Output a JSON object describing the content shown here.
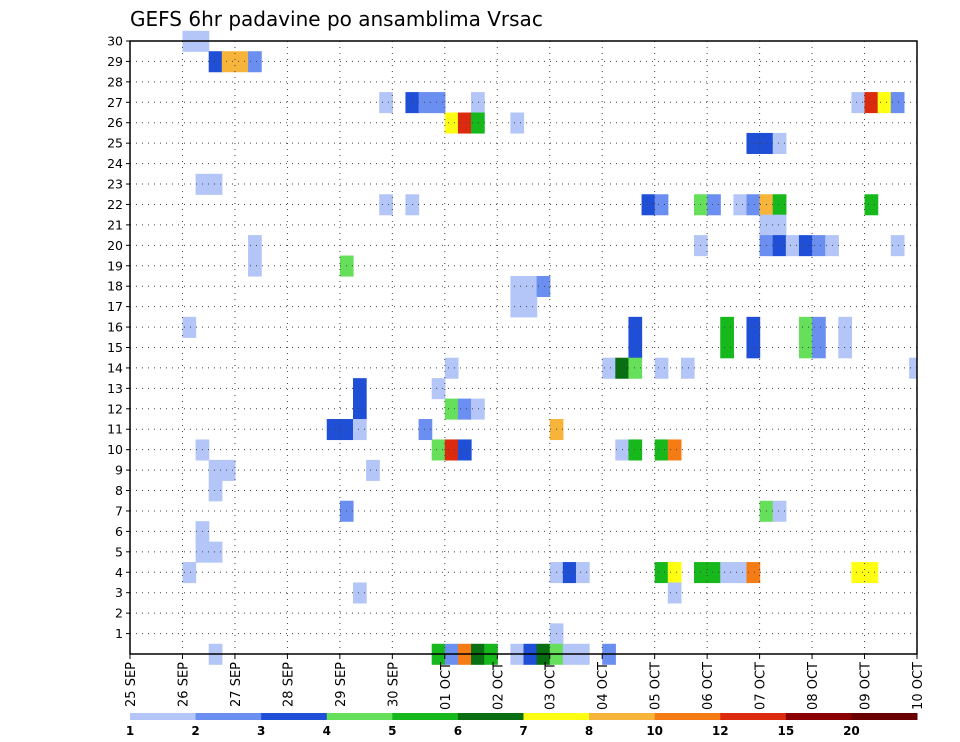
{
  "chart_data": {
    "type": "heatmap",
    "title": "GEFS 6hr padavine po ansamblima Vrsac",
    "x_labels": [
      "25 SEP",
      "26 SEP",
      "27 SEP",
      "28 SEP",
      "29 SEP",
      "30 SEP",
      "01 OCT",
      "02 OCT",
      "03 OCT",
      "04 OCT",
      "05 OCT",
      "06 OCT",
      "07 OCT",
      "08 OCT",
      "09 OCT",
      "10 OCT"
    ],
    "y_labels": [
      "1",
      "2",
      "3",
      "4",
      "5",
      "6",
      "7",
      "8",
      "9",
      "10",
      "11",
      "12",
      "13",
      "14",
      "15",
      "16",
      "17",
      "18",
      "19",
      "20",
      "21",
      "22",
      "23",
      "24",
      "25",
      "26",
      "27",
      "28",
      "29",
      "30"
    ],
    "ylim": [
      0,
      30
    ],
    "x_range_days": [
      0,
      15
    ],
    "grid": true,
    "colorbar": {
      "ticks": [
        "1",
        "2",
        "3",
        "4",
        "5",
        "6",
        "7",
        "8",
        "10",
        "12",
        "15",
        "20"
      ],
      "colors": [
        "#b3c6f7",
        "#6b8ff0",
        "#1e4fd6",
        "#66e05a",
        "#16b81c",
        "#0a6e12",
        "#ffff14",
        "#f7b43a",
        "#f57c14",
        "#db2a0d",
        "#8a0000",
        "#6a0000"
      ]
    },
    "cells": [
      [
        1.0,
        30,
        1
      ],
      [
        1.25,
        30,
        1
      ],
      [
        1.5,
        29,
        3
      ],
      [
        1.75,
        29,
        8
      ],
      [
        2.0,
        29,
        8
      ],
      [
        2.25,
        29,
        2
      ],
      [
        4.75,
        27,
        1
      ],
      [
        5.25,
        27,
        3
      ],
      [
        5.5,
        27,
        2
      ],
      [
        5.75,
        27,
        2
      ],
      [
        6.5,
        27,
        1
      ],
      [
        13.75,
        27,
        1
      ],
      [
        14.0,
        27,
        10
      ],
      [
        14.25,
        27,
        7
      ],
      [
        14.5,
        27,
        2
      ],
      [
        6.0,
        26,
        7
      ],
      [
        6.25,
        26,
        10
      ],
      [
        6.5,
        26,
        5
      ],
      [
        7.25,
        26,
        1
      ],
      [
        11.75,
        25,
        3
      ],
      [
        12.0,
        25,
        3
      ],
      [
        12.25,
        25,
        1
      ],
      [
        1.25,
        23,
        1
      ],
      [
        1.5,
        23,
        1
      ],
      [
        4.75,
        22,
        1
      ],
      [
        5.25,
        22,
        1
      ],
      [
        9.75,
        22,
        3
      ],
      [
        10.0,
        22,
        2
      ],
      [
        10.75,
        22,
        4
      ],
      [
        11.0,
        22,
        2
      ],
      [
        11.5,
        22,
        1
      ],
      [
        11.75,
        22,
        2
      ],
      [
        12.0,
        22,
        8
      ],
      [
        12.25,
        22,
        5
      ],
      [
        14.0,
        22,
        5
      ],
      [
        12.0,
        21,
        1
      ],
      [
        12.25,
        21,
        1
      ],
      [
        2.25,
        20,
        1
      ],
      [
        10.75,
        20,
        1
      ],
      [
        12.0,
        20,
        2
      ],
      [
        12.25,
        20,
        3
      ],
      [
        12.5,
        20,
        1
      ],
      [
        12.75,
        20,
        3
      ],
      [
        13.0,
        20,
        2
      ],
      [
        13.25,
        20,
        1
      ],
      [
        14.5,
        20,
        1
      ],
      [
        2.25,
        19,
        1
      ],
      [
        4.0,
        19,
        4
      ],
      [
        7.25,
        18,
        1
      ],
      [
        7.5,
        18,
        1
      ],
      [
        7.75,
        18,
        2
      ],
      [
        7.25,
        17,
        1
      ],
      [
        7.5,
        17,
        1
      ],
      [
        1.0,
        16,
        1
      ],
      [
        9.5,
        16,
        3
      ],
      [
        11.25,
        16,
        5
      ],
      [
        11.75,
        16,
        3
      ],
      [
        12.75,
        16,
        4
      ],
      [
        13.0,
        16,
        2
      ],
      [
        13.5,
        16,
        1
      ],
      [
        9.5,
        15,
        3
      ],
      [
        11.25,
        15,
        5
      ],
      [
        11.75,
        15,
        3
      ],
      [
        12.75,
        15,
        4
      ],
      [
        13.0,
        15,
        2
      ],
      [
        13.5,
        15,
        1
      ],
      [
        6.0,
        14,
        1
      ],
      [
        9.0,
        14,
        1
      ],
      [
        9.25,
        14,
        6
      ],
      [
        9.5,
        14,
        4
      ],
      [
        10.0,
        14,
        1
      ],
      [
        10.5,
        14,
        1
      ],
      [
        14.85,
        14,
        1
      ],
      [
        4.25,
        13,
        3
      ],
      [
        5.75,
        13,
        1
      ],
      [
        4.25,
        12,
        3
      ],
      [
        6.0,
        12,
        4
      ],
      [
        6.25,
        12,
        2
      ],
      [
        6.5,
        12,
        1
      ],
      [
        3.75,
        11,
        3
      ],
      [
        4.0,
        11,
        3
      ],
      [
        4.25,
        11,
        1
      ],
      [
        5.5,
        11,
        2
      ],
      [
        8.0,
        11,
        8
      ],
      [
        1.25,
        10,
        1
      ],
      [
        5.75,
        10,
        4
      ],
      [
        6.0,
        10,
        10
      ],
      [
        6.25,
        10,
        3
      ],
      [
        9.25,
        10,
        1
      ],
      [
        9.5,
        10,
        5
      ],
      [
        10.0,
        10,
        5
      ],
      [
        10.25,
        10,
        9
      ],
      [
        1.5,
        9,
        1
      ],
      [
        1.75,
        9,
        1
      ],
      [
        4.5,
        9,
        1
      ],
      [
        1.5,
        8,
        1
      ],
      [
        4.0,
        7,
        2
      ],
      [
        12.0,
        7,
        4
      ],
      [
        12.25,
        7,
        1
      ],
      [
        1.25,
        6,
        1
      ],
      [
        1.25,
        5,
        1
      ],
      [
        1.5,
        5,
        1
      ],
      [
        1.0,
        4,
        1
      ],
      [
        8.0,
        4,
        1
      ],
      [
        8.25,
        4,
        3
      ],
      [
        8.5,
        4,
        1
      ],
      [
        10.0,
        4,
        5
      ],
      [
        10.25,
        4,
        7
      ],
      [
        10.75,
        4,
        5
      ],
      [
        11.0,
        4,
        5
      ],
      [
        11.25,
        4,
        1
      ],
      [
        11.5,
        4,
        1
      ],
      [
        11.75,
        4,
        9
      ],
      [
        13.75,
        4,
        7
      ],
      [
        14.0,
        4,
        7
      ],
      [
        4.25,
        3,
        1
      ],
      [
        10.25,
        3,
        1
      ],
      [
        8.0,
        1,
        1
      ],
      [
        1.5,
        0,
        1
      ],
      [
        5.75,
        0,
        5
      ],
      [
        6.0,
        0,
        2
      ],
      [
        6.25,
        0,
        9
      ],
      [
        6.5,
        0,
        6
      ],
      [
        6.75,
        0,
        5
      ],
      [
        7.25,
        0,
        1
      ],
      [
        7.5,
        0,
        3
      ],
      [
        7.75,
        0,
        6
      ],
      [
        8.0,
        0,
        4
      ],
      [
        8.25,
        0,
        1
      ],
      [
        8.5,
        0,
        1
      ],
      [
        9.0,
        0,
        2
      ]
    ]
  }
}
